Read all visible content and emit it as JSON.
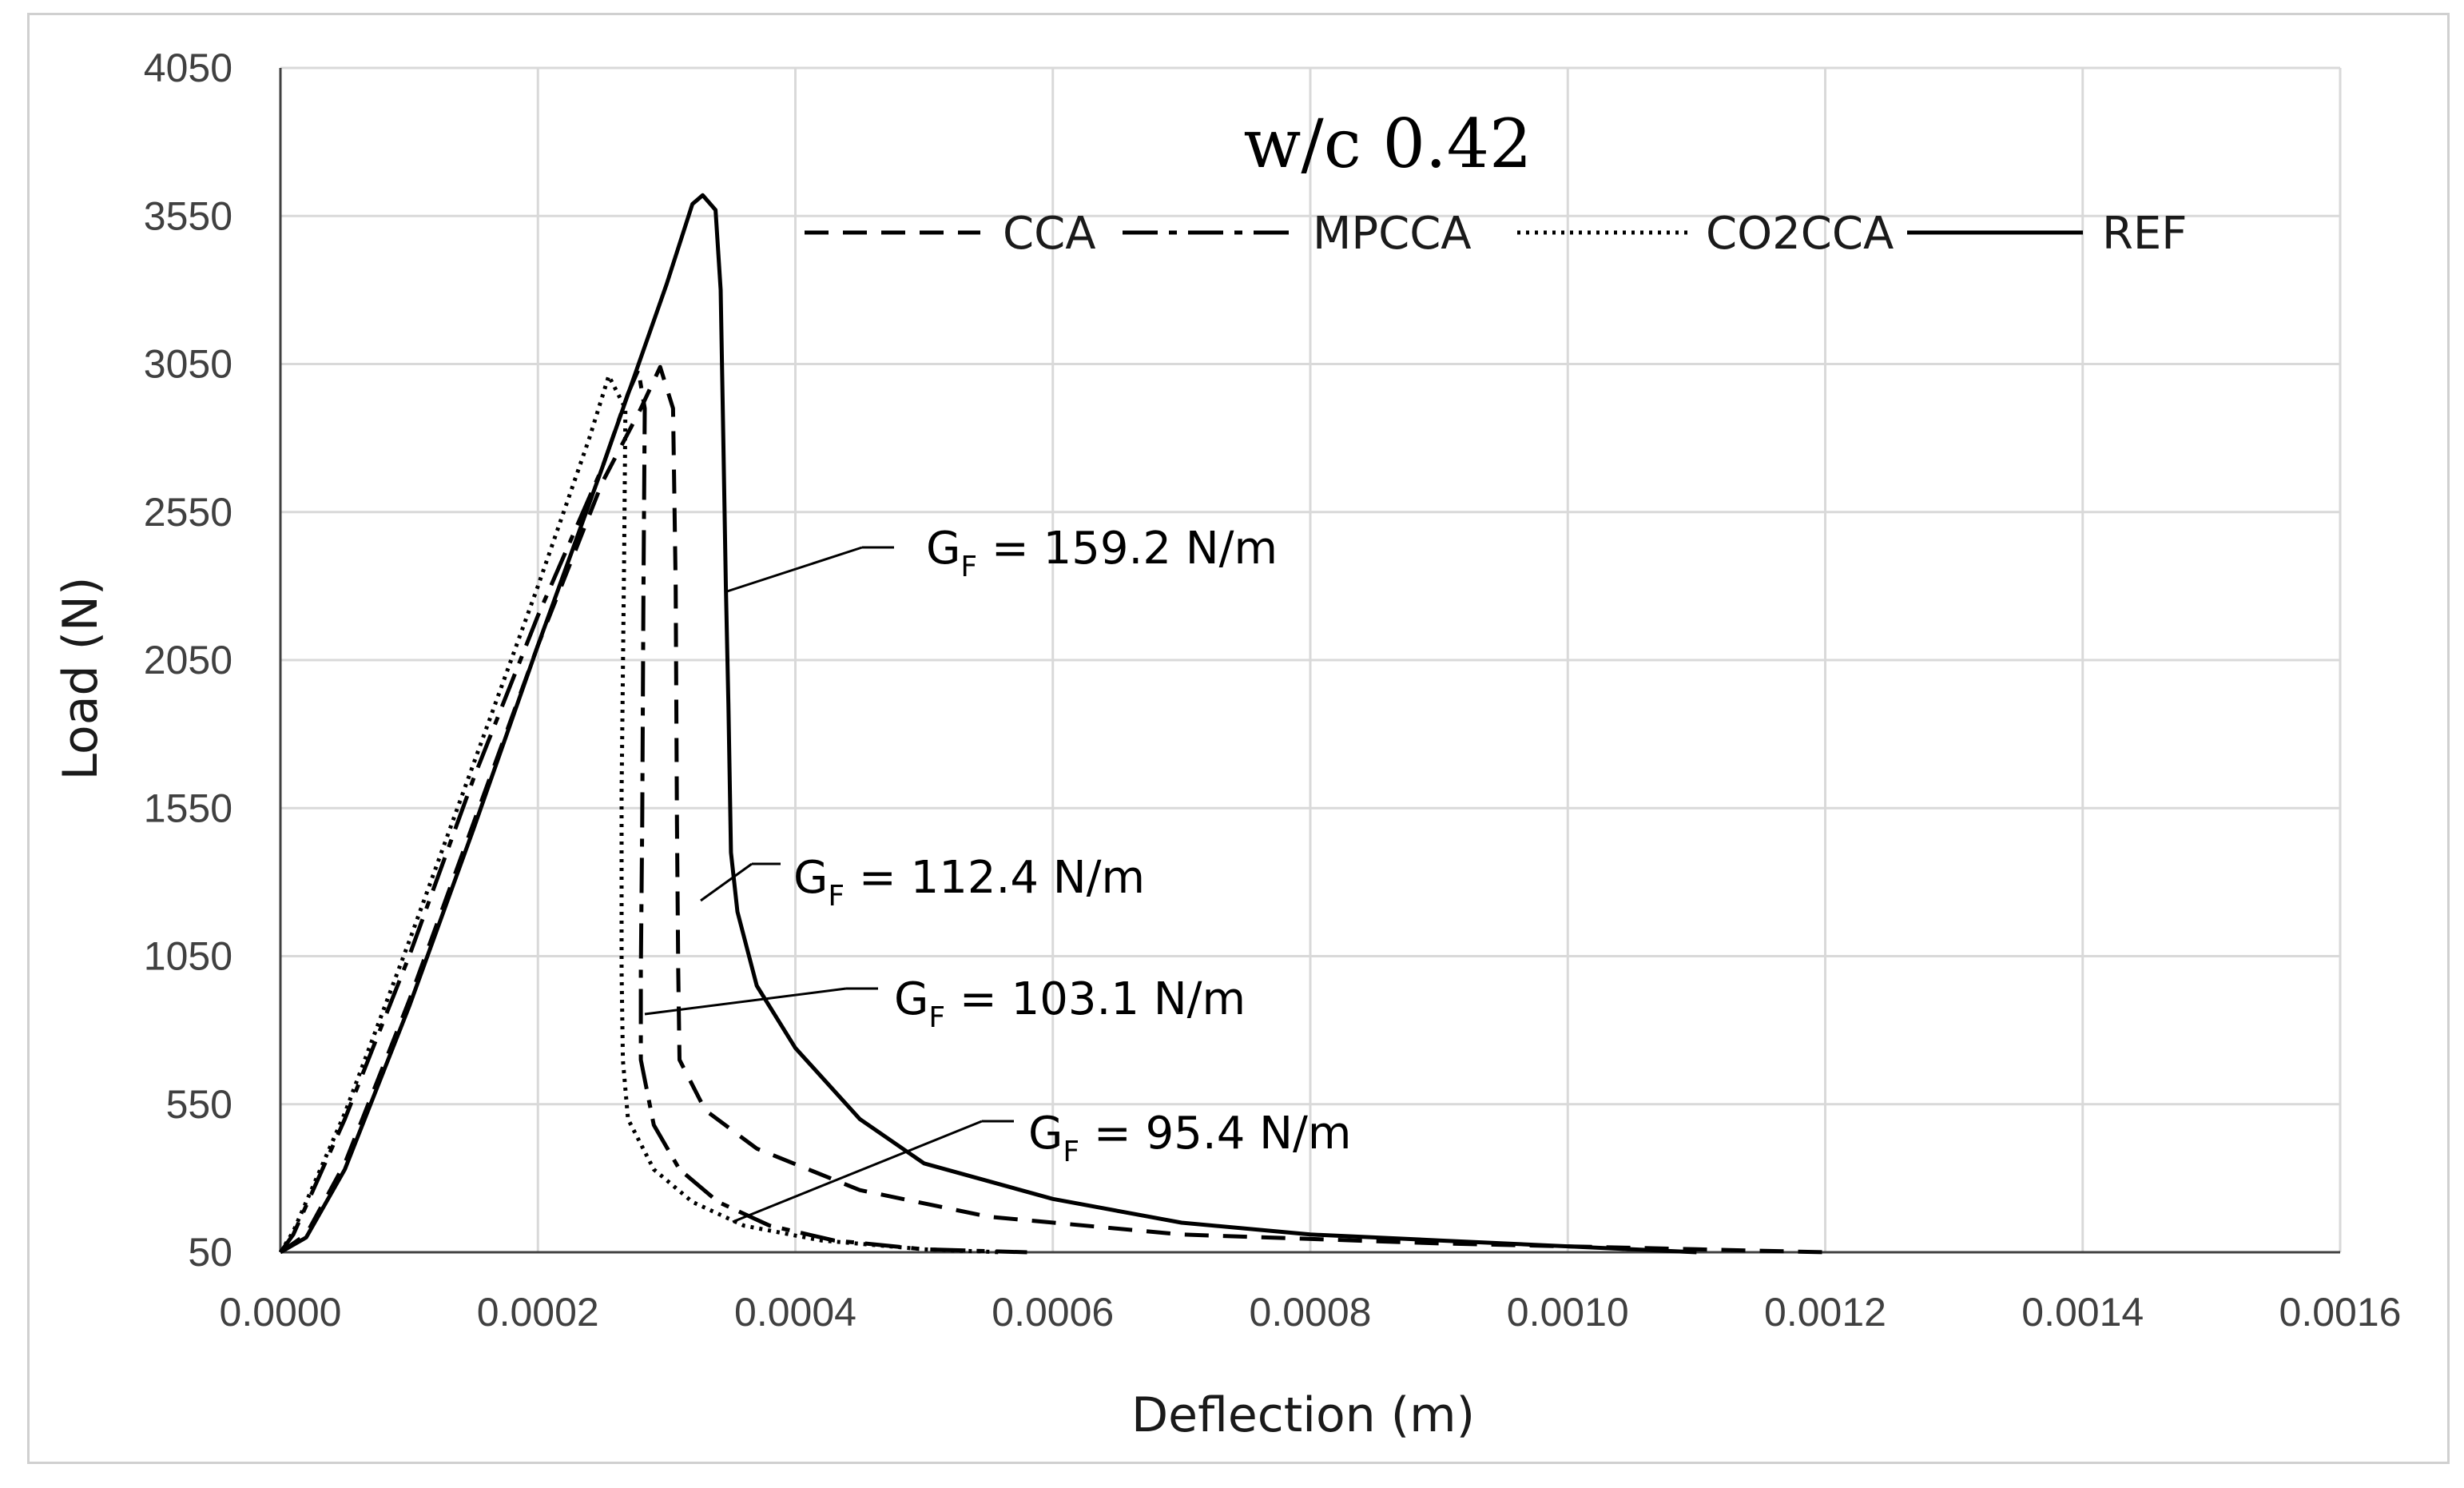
{
  "chart_data": {
    "type": "line",
    "title": "w/c 0.42",
    "xlabel": "Deflection (m)",
    "ylabel": "Load (N)",
    "xlim": [
      0,
      0.0016
    ],
    "ylim": [
      50,
      4050
    ],
    "x_ticks": [
      "0.0000",
      "0.0002",
      "0.0004",
      "0.0006",
      "0.0008",
      "0.0010",
      "0.0012",
      "0.0014",
      "0.0016"
    ],
    "y_ticks": [
      "50",
      "550",
      "1050",
      "1550",
      "2050",
      "2550",
      "3050",
      "3550",
      "4050"
    ],
    "grid": true,
    "legend_position": "top-right",
    "series": [
      {
        "name": "CCA",
        "style": "dashed",
        "color": "#000000",
        "points": [
          [
            0.0,
            50
          ],
          [
            2e-05,
            110
          ],
          [
            5e-05,
            350
          ],
          [
            0.0001,
            900
          ],
          [
            0.00015,
            1500
          ],
          [
            0.0002,
            2100
          ],
          [
            0.00025,
            2650
          ],
          [
            0.00028,
            2900
          ],
          [
            0.000295,
            3040
          ],
          [
            0.000305,
            2900
          ],
          [
            0.000307,
            2300
          ],
          [
            0.000308,
            1500
          ],
          [
            0.000309,
            1000
          ],
          [
            0.00031,
            700
          ],
          [
            0.00033,
            530
          ],
          [
            0.00037,
            400
          ],
          [
            0.00045,
            260
          ],
          [
            0.00055,
            170
          ],
          [
            0.0007,
            110
          ],
          [
            0.0009,
            80
          ],
          [
            0.0011,
            60
          ],
          [
            0.0012,
            50
          ]
        ]
      },
      {
        "name": "MPCCA",
        "style": "dash-dot",
        "color": "#000000",
        "points": [
          [
            0.0,
            50
          ],
          [
            1e-05,
            110
          ],
          [
            5e-05,
            500
          ],
          [
            0.0001,
            1050
          ],
          [
            0.00015,
            1650
          ],
          [
            0.0002,
            2200
          ],
          [
            0.00025,
            2700
          ],
          [
            0.00027,
            2950
          ],
          [
            0.000278,
            3030
          ],
          [
            0.000283,
            2900
          ],
          [
            0.000282,
            2300
          ],
          [
            0.000281,
            1500
          ],
          [
            0.00028,
            1000
          ],
          [
            0.00028,
            700
          ],
          [
            0.00029,
            480
          ],
          [
            0.00031,
            330
          ],
          [
            0.00034,
            220
          ],
          [
            0.00038,
            140
          ],
          [
            0.00043,
            90
          ],
          [
            0.0005,
            60
          ],
          [
            0.00058,
            50
          ]
        ]
      },
      {
        "name": "CO2CCA",
        "style": "dotted",
        "color": "#000000",
        "points": [
          [
            0.0,
            50
          ],
          [
            1e-05,
            120
          ],
          [
            5e-05,
            520
          ],
          [
            0.0001,
            1100
          ],
          [
            0.00015,
            1700
          ],
          [
            0.0002,
            2300
          ],
          [
            0.00024,
            2800
          ],
          [
            0.000255,
            3010
          ],
          [
            0.000268,
            2900
          ],
          [
            0.000267,
            2400
          ],
          [
            0.000265,
            1600
          ],
          [
            0.000265,
            1000
          ],
          [
            0.000266,
            700
          ],
          [
            0.00027,
            500
          ],
          [
            0.00029,
            330
          ],
          [
            0.00032,
            220
          ],
          [
            0.00036,
            140
          ],
          [
            0.00042,
            90
          ],
          [
            0.0005,
            60
          ],
          [
            0.00056,
            50
          ]
        ]
      },
      {
        "name": "REF",
        "style": "solid",
        "color": "#000000",
        "points": [
          [
            0.0,
            50
          ],
          [
            2e-05,
            100
          ],
          [
            5e-05,
            330
          ],
          [
            0.0001,
            880
          ],
          [
            0.00015,
            1480
          ],
          [
            0.0002,
            2100
          ],
          [
            0.00025,
            2700
          ],
          [
            0.0003,
            3320
          ],
          [
            0.00032,
            3590
          ],
          [
            0.000328,
            3620
          ],
          [
            0.000338,
            3570
          ],
          [
            0.000342,
            3300
          ],
          [
            0.000344,
            2800
          ],
          [
            0.000346,
            2300
          ],
          [
            0.000348,
            1900
          ],
          [
            0.00035,
            1400
          ],
          [
            0.000355,
            1200
          ],
          [
            0.00037,
            950
          ],
          [
            0.0004,
            740
          ],
          [
            0.00045,
            500
          ],
          [
            0.0005,
            350
          ],
          [
            0.0006,
            230
          ],
          [
            0.0007,
            150
          ],
          [
            0.0008,
            110
          ],
          [
            0.0009,
            90
          ],
          [
            0.001,
            70
          ],
          [
            0.0011,
            50
          ]
        ]
      }
    ],
    "annotations": [
      {
        "label": "G",
        "subscript": "F",
        "text": " = 159.2 N/m",
        "series": "REF"
      },
      {
        "label": "G",
        "subscript": "F",
        "text": " = 112.4 N/m",
        "series": "CCA"
      },
      {
        "label": "G",
        "subscript": "F",
        "text": " = 103.1 N/m",
        "series": "MPCCA"
      },
      {
        "label": "G",
        "subscript": "F",
        "text": " = 95.4 N/m",
        "series": "CO2CCA"
      }
    ]
  }
}
